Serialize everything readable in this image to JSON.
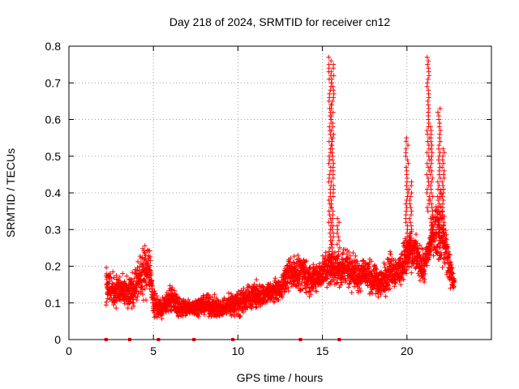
{
  "chart_data": {
    "type": "scatter",
    "title": "Day 218 of 2024, SRMTID for receiver cn12",
    "xlabel": "GPS time / hours",
    "ylabel": "SRMTID / TECUs",
    "xlim": [
      0,
      25
    ],
    "ylim": [
      0,
      0.8
    ],
    "x_ticks": [
      0,
      5,
      10,
      15,
      20
    ],
    "x_tick_labels": [
      "0",
      "5",
      "10",
      "15",
      "20"
    ],
    "y_ticks": [
      0,
      0.1,
      0.2,
      0.3,
      0.4,
      0.5,
      0.6,
      0.7,
      0.8
    ],
    "y_tick_labels": [
      "0",
      "0.1",
      "0.2",
      "0.3",
      "0.4",
      "0.5",
      "0.6",
      "0.7",
      "0.8"
    ],
    "grid": true,
    "marker": "+",
    "series_color": "#ff0000",
    "envelope": [
      [
        2.2,
        0.08,
        0.22
      ],
      [
        2.6,
        0.07,
        0.2
      ],
      [
        3.0,
        0.08,
        0.19
      ],
      [
        3.5,
        0.06,
        0.18
      ],
      [
        4.0,
        0.08,
        0.22
      ],
      [
        4.5,
        0.09,
        0.28
      ],
      [
        4.75,
        0.12,
        0.3
      ],
      [
        5.0,
        0.05,
        0.15
      ],
      [
        5.5,
        0.04,
        0.12
      ],
      [
        6.0,
        0.07,
        0.16
      ],
      [
        6.5,
        0.05,
        0.13
      ],
      [
        7.0,
        0.05,
        0.12
      ],
      [
        7.5,
        0.06,
        0.12
      ],
      [
        8.0,
        0.06,
        0.13
      ],
      [
        8.5,
        0.05,
        0.13
      ],
      [
        9.0,
        0.05,
        0.12
      ],
      [
        9.5,
        0.05,
        0.14
      ],
      [
        10.0,
        0.05,
        0.15
      ],
      [
        10.5,
        0.06,
        0.16
      ],
      [
        11.0,
        0.07,
        0.17
      ],
      [
        11.5,
        0.08,
        0.16
      ],
      [
        12.0,
        0.09,
        0.17
      ],
      [
        12.5,
        0.1,
        0.18
      ],
      [
        13.0,
        0.12,
        0.24
      ],
      [
        13.5,
        0.12,
        0.25
      ],
      [
        14.0,
        0.11,
        0.24
      ],
      [
        14.5,
        0.1,
        0.22
      ],
      [
        15.0,
        0.13,
        0.24
      ],
      [
        15.5,
        0.13,
        0.26
      ],
      [
        16.0,
        0.12,
        0.26
      ],
      [
        16.5,
        0.13,
        0.27
      ],
      [
        17.0,
        0.11,
        0.24
      ],
      [
        17.5,
        0.12,
        0.25
      ],
      [
        18.0,
        0.1,
        0.22
      ],
      [
        18.5,
        0.1,
        0.21
      ],
      [
        19.0,
        0.12,
        0.26
      ],
      [
        19.5,
        0.13,
        0.24
      ],
      [
        20.0,
        0.15,
        0.32
      ],
      [
        20.5,
        0.17,
        0.3
      ],
      [
        21.0,
        0.13,
        0.25
      ],
      [
        21.5,
        0.22,
        0.35
      ],
      [
        22.0,
        0.17,
        0.45
      ],
      [
        22.5,
        0.12,
        0.28
      ],
      [
        22.8,
        0.12,
        0.18
      ]
    ],
    "spikes": [
      {
        "x": 15.45,
        "low": 0.2,
        "high": 0.77
      },
      {
        "x": 15.6,
        "low": 0.18,
        "high": 0.75
      },
      {
        "x": 15.95,
        "low": 0.18,
        "high": 0.33
      },
      {
        "x": 20.0,
        "low": 0.18,
        "high": 0.55
      },
      {
        "x": 20.2,
        "low": 0.22,
        "high": 0.43
      },
      {
        "x": 21.25,
        "low": 0.35,
        "high": 0.77
      },
      {
        "x": 21.45,
        "low": 0.26,
        "high": 0.58
      },
      {
        "x": 21.9,
        "low": 0.22,
        "high": 0.63
      },
      {
        "x": 22.15,
        "low": 0.25,
        "high": 0.52
      }
    ],
    "zero_markers_x": [
      2.2,
      3.6,
      5.3,
      7.4,
      9.7,
      13.7,
      16.0
    ]
  }
}
